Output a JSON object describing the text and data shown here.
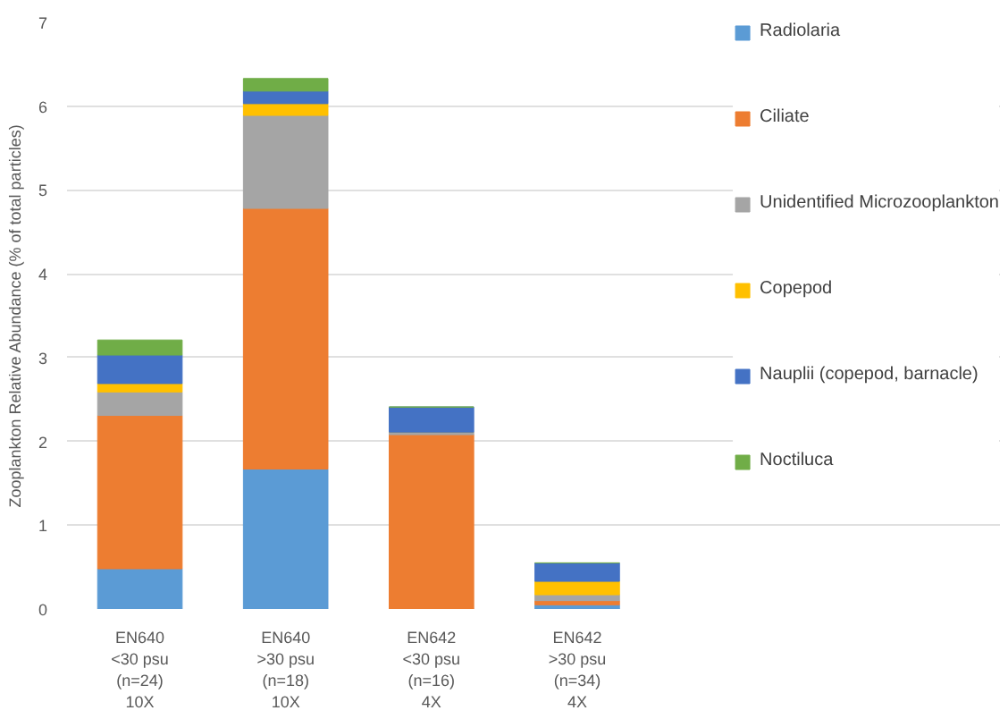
{
  "chart_data": {
    "type": "bar",
    "stacked": true,
    "ylabel": "Zooplankton Relative Abundance (% of total particles)",
    "categories": [
      "EN640\n<30 psu\n(n=24)\n10X",
      "EN640\n>30 psu\n(n=18)\n10X",
      "EN642\n<30 psu\n(n=16)\n4X",
      "EN642\n>30 psu\n(n=34)\n4X"
    ],
    "series": [
      {
        "name": "Radiolaria",
        "color": "#5b9bd5",
        "values": [
          0.48,
          1.67,
          0,
          0.05
        ]
      },
      {
        "name": "Ciliate",
        "color": "#ed7d31",
        "values": [
          1.83,
          3.11,
          2.08,
          0.05
        ]
      },
      {
        "name": "Unidentified Microzooplankton",
        "color": "#a5a5a5",
        "values": [
          0.28,
          1.11,
          0.03,
          0.07
        ]
      },
      {
        "name": "Copepod",
        "color": "#ffc000",
        "values": [
          0.1,
          0.14,
          0,
          0.16
        ]
      },
      {
        "name": "Nauplii (copepod, barnacle)",
        "color": "#4472c4",
        "values": [
          0.34,
          0.15,
          0.3,
          0.22
        ]
      },
      {
        "name": "Noctiluca",
        "color": "#70ad47",
        "values": [
          0.18,
          0.15,
          0,
          0
        ]
      }
    ],
    "ylim": [
      0,
      7
    ],
    "yticks": [
      0,
      1,
      2,
      3,
      4,
      5,
      6,
      7
    ],
    "grid": "y",
    "legend": "right"
  }
}
